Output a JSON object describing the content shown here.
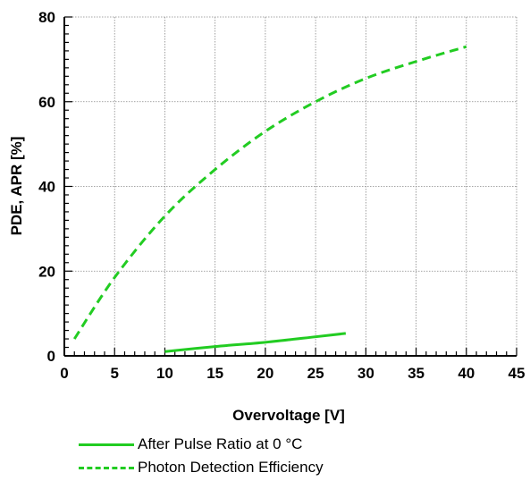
{
  "chart_data": {
    "type": "line",
    "xlabel": "Overvoltage [V]",
    "ylabel": "PDE, APR [%]",
    "xlim": [
      0,
      45
    ],
    "ylim": [
      0,
      80
    ],
    "x_ticks": [
      0,
      5,
      10,
      15,
      20,
      25,
      30,
      35,
      40,
      45
    ],
    "y_ticks": [
      0,
      20,
      40,
      60,
      80
    ],
    "x_tick_labels": [
      "0",
      "5",
      "10",
      "15",
      "20",
      "25",
      "30",
      "35",
      "40",
      "45"
    ],
    "y_tick_labels": [
      "0",
      "20",
      "40",
      "60",
      "80"
    ],
    "grid": true,
    "legend_position": "bottom",
    "series": [
      {
        "name": "After Pulse Ratio at 0 °C",
        "style": "solid",
        "color": "#22cc22",
        "x": [
          10,
          15,
          20,
          25,
          28
        ],
        "y": [
          1,
          2.2,
          3.2,
          4.5,
          5.3
        ]
      },
      {
        "name": "Photon Detection Efficiency",
        "style": "dashed",
        "color": "#22cc22",
        "x": [
          1,
          5,
          10,
          15,
          20,
          25,
          30,
          35,
          40
        ],
        "y": [
          4,
          18.5,
          33,
          44,
          53,
          60,
          65.5,
          69.5,
          73
        ]
      }
    ]
  }
}
